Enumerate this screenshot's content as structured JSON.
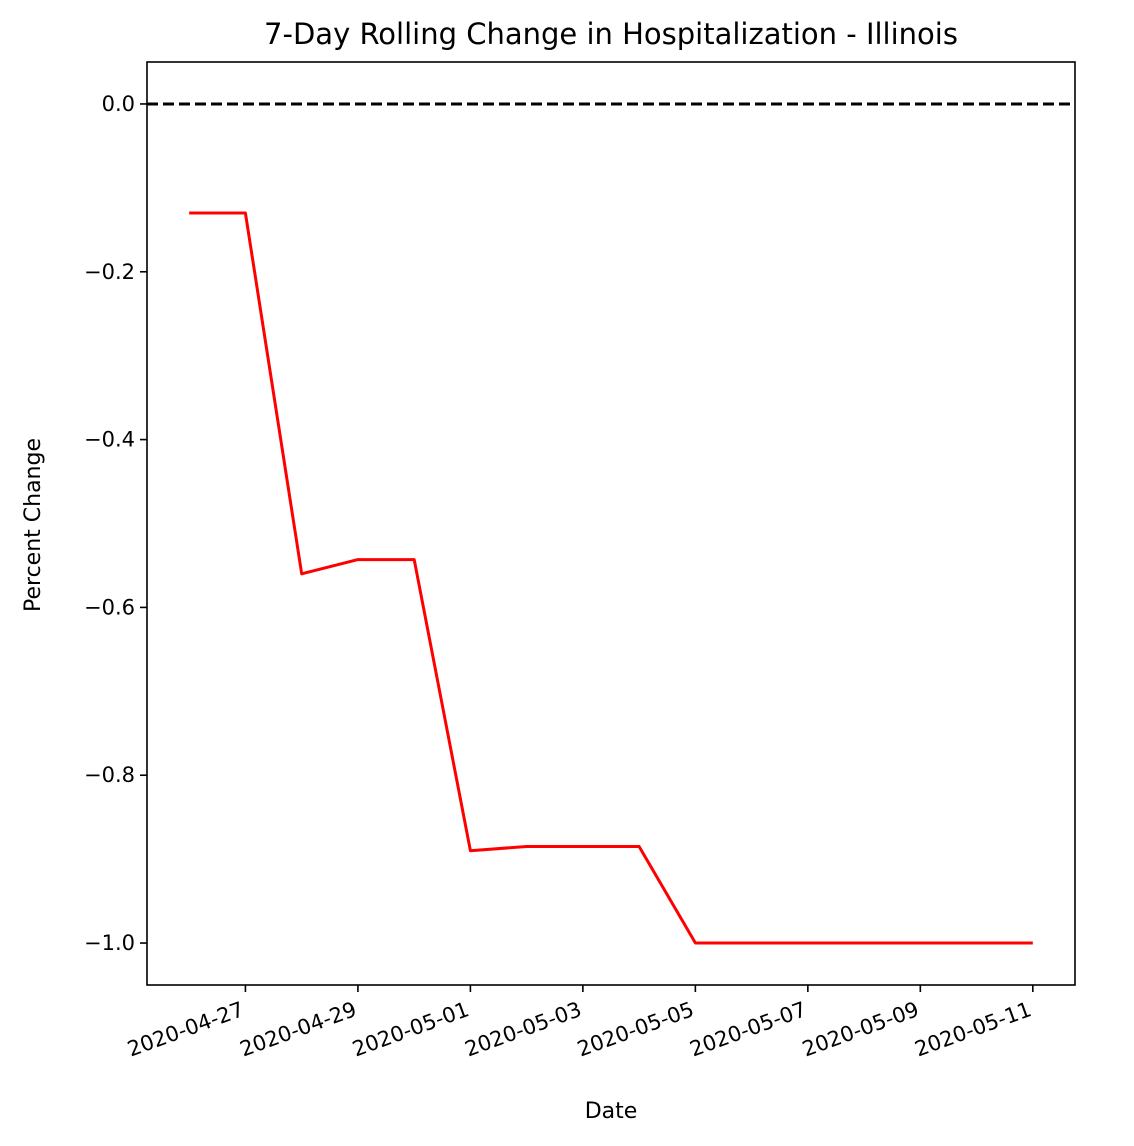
{
  "chart_data": {
    "type": "line",
    "title": "7-Day Rolling Change in Hospitalization - Illinois",
    "xlabel": "Date",
    "ylabel": "Percent Change",
    "ylim": [
      -1.05,
      0.05
    ],
    "xlim": [
      "2020-04-25T06:00",
      "2020-05-11T18:00"
    ],
    "yticks": [
      "0.0",
      "−0.2",
      "−0.4",
      "−0.6",
      "−0.8",
      "−1.0"
    ],
    "ytick_values": [
      0.0,
      -0.2,
      -0.4,
      -0.6,
      -0.8,
      -1.0
    ],
    "xticks": [
      "2020-04-27",
      "2020-04-29",
      "2020-05-01",
      "2020-05-03",
      "2020-05-05",
      "2020-05-07",
      "2020-05-09",
      "2020-05-11"
    ],
    "grid": false,
    "reference_line": {
      "y": 0.0,
      "style": "dashed",
      "color": "#000000"
    },
    "series": [
      {
        "color": "#ff0000",
        "x": [
          "2020-04-26",
          "2020-04-27",
          "2020-04-28",
          "2020-04-29",
          "2020-04-30",
          "2020-05-01",
          "2020-05-02",
          "2020-05-03",
          "2020-05-04",
          "2020-05-05",
          "2020-05-06",
          "2020-05-07",
          "2020-05-08",
          "2020-05-09",
          "2020-05-10",
          "2020-05-11"
        ],
        "values": [
          -0.13,
          -0.13,
          -0.56,
          -0.543,
          -0.543,
          -0.89,
          -0.885,
          -0.885,
          -0.885,
          -1.0,
          -1.0,
          -1.0,
          -1.0,
          -1.0,
          -1.0,
          -1.0
        ]
      }
    ]
  }
}
